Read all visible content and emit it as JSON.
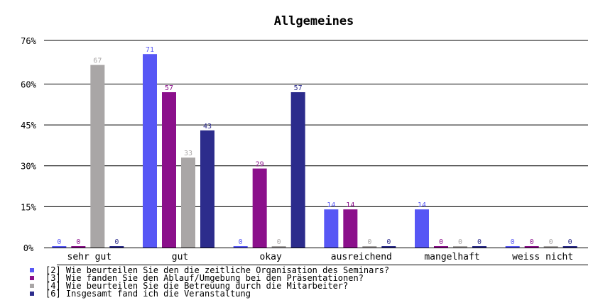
{
  "chart_data": {
    "type": "bar",
    "title": "Allgemeines",
    "categories": [
      "sehr gut",
      "gut",
      "okay",
      "ausreichend",
      "mangelhaft",
      "weiss nicht"
    ],
    "y_ticks": [
      "0%",
      "15%",
      "30%",
      "45%",
      "60%",
      "76%"
    ],
    "y_tick_values": [
      0,
      15,
      30,
      45,
      60,
      76
    ],
    "ylim": [
      0,
      76
    ],
    "grid": true,
    "legend_position": "bottom-left",
    "series": [
      {
        "name": "[2] Wie beurteilen Sie den die zeitliche Organisation des Seminars?",
        "color": "#5757f5",
        "values": [
          0,
          71,
          0,
          14,
          14,
          0
        ],
        "labels": [
          "0",
          "71",
          "0",
          "14",
          "14",
          "0"
        ]
      },
      {
        "name": "[3] Wie fanden Sie den Ablauf/Umgebung bei den Präsentationen?",
        "color": "#8b108b",
        "values": [
          0,
          57,
          29,
          14,
          0,
          0
        ],
        "labels": [
          "0",
          "57",
          "29",
          "14",
          "0",
          "0"
        ]
      },
      {
        "name": "[4] Wie beurteilen Sie die Betreuung durch die Mitarbeiter?",
        "color": "#a9a6a6",
        "values": [
          67,
          33,
          0,
          0,
          0,
          0
        ],
        "labels": [
          "67",
          "33",
          "0",
          "0",
          "0",
          "0"
        ]
      },
      {
        "name": "[6] Insgesamt fand ich die Veranstaltung",
        "color": "#2c2c8c",
        "values": [
          0,
          43,
          57,
          0,
          0,
          0
        ],
        "labels": [
          "0",
          "43",
          "57",
          "0",
          "0",
          "0"
        ]
      }
    ]
  }
}
